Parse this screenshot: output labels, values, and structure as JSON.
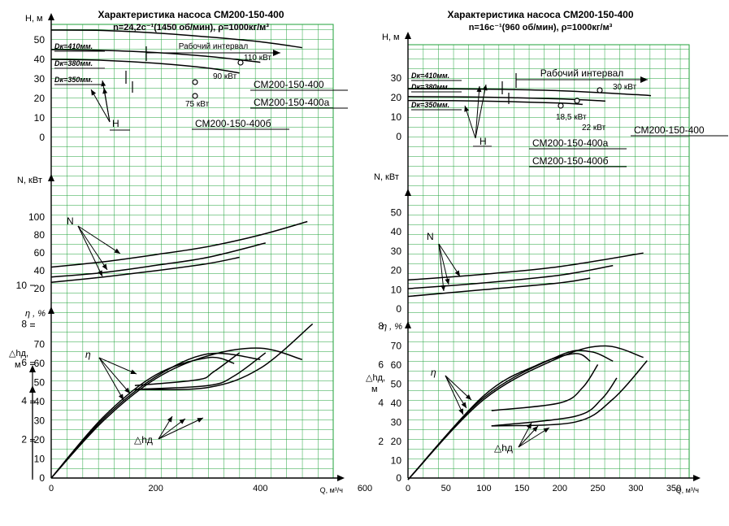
{
  "charts": [
    {
      "title": "Характеристика насоса СМ200-150-400",
      "subtitle": "n=24,2с⁻¹(1450 об/мин), ρ=1000кг/м³",
      "labels": {
        "h": "H, м",
        "n": "N, кВт",
        "eta": "η , %",
        "npsh": "△hд,",
        "npsh_unit": "м",
        "q": "Q, м³/ч",
        "interval": "Рабочий интервал",
        "h_group": "H",
        "n_group": "N",
        "eta_group": "η",
        "npsh_group": "△hд"
      },
      "pump_labels": [
        "СМ200-150-400",
        "СМ200-150-400а",
        "СМ200-150-400б"
      ],
      "power_labels": [
        "110 кВт",
        "90 кВт",
        "75 кВт"
      ],
      "dk_labels": [
        "Dк=410мм.",
        "Dк=380мм.",
        "Dк=350мм."
      ],
      "q_ticks": [
        "0",
        "200",
        "400",
        "600"
      ],
      "h_ticks": [
        "0",
        "10",
        "20",
        "30",
        "40",
        "50"
      ],
      "n_ticks": [
        "20",
        "40",
        "60",
        "80",
        "100"
      ],
      "eta_ticks": [
        "10",
        "20",
        "30",
        "40",
        "50",
        "60",
        "70"
      ],
      "npsh_ticks": [
        "2",
        "4",
        "6",
        "8",
        "10"
      ]
    },
    {
      "title": "Характеристика насоса СМ200-150-400",
      "subtitle": "n=16с⁻¹(960 об/мин), ρ=1000кг/м³",
      "labels": {
        "h": "H, м",
        "n": "N, кВт",
        "eta": "η , %",
        "npsh": "△hд,",
        "npsh_unit": "м",
        "q": "Q, м³/ч",
        "interval": "Рабочий интервал",
        "h_group": "H",
        "n_group": "N",
        "eta_group": "η",
        "npsh_group": "△hд"
      },
      "pump_labels": [
        "СМ200-150-400",
        "СМ200-150-400а",
        "СМ200-150-400б"
      ],
      "power_labels": [
        "30 кВт",
        "18,5 кВт",
        "22 кВт"
      ],
      "dk_labels": [
        "Dк=410мм.",
        "Dк=380мм.",
        "Dк=350мм."
      ],
      "q_ticks": [
        "0",
        "50",
        "100",
        "150",
        "200",
        "250",
        "300",
        "350"
      ],
      "h_ticks": [
        "0",
        "10",
        "20",
        "30"
      ],
      "n_ticks": [
        "0",
        "10",
        "20",
        "30",
        "40",
        "50"
      ],
      "eta_ticks": [
        "10",
        "20",
        "30",
        "40",
        "50",
        "60",
        "70"
      ],
      "npsh_ticks": [
        "2",
        "4",
        "6",
        "8"
      ]
    }
  ],
  "chart_data": [
    {
      "type": "line",
      "title": "Характеристика насоса СМ200-150-400",
      "subtitle": "n=24,2с⁻¹(1450 об/мин), ρ=1000кг/м³",
      "xlabel": "Q, м³/ч",
      "xlim": [
        0,
        600
      ],
      "grid": true,
      "panels": {
        "H": {
          "ylabel": "H, м",
          "ylim": [
            0,
            55
          ],
          "series": [
            {
              "name": "СМ200-150-400",
              "x": [
                0,
                100,
                200,
                300,
                400,
                480
              ],
              "y": [
                55,
                54.8,
                53.5,
                51.5,
                49,
                46
              ]
            },
            {
              "name": "СМ200-150-400а",
              "x": [
                0,
                100,
                200,
                300,
                400
              ],
              "y": [
                45,
                44.6,
                43.5,
                41.5,
                38.5
              ]
            },
            {
              "name": "СМ200-150-400б",
              "x": [
                0,
                100,
                200,
                300,
                360
              ],
              "y": [
                40,
                39.5,
                38,
                35.5,
                33
              ]
            }
          ]
        },
        "N": {
          "ylabel": "N, кВт",
          "ylim": [
            20,
            100
          ],
          "series": [
            {
              "name": "СМ200-150-400",
              "x": [
                0,
                100,
                200,
                300,
                400,
                490
              ],
              "y": [
                44,
                50,
                58,
                67,
                80,
                95
              ]
            },
            {
              "name": "СМ200-150-400а",
              "x": [
                0,
                100,
                200,
                300,
                410
              ],
              "y": [
                33,
                38,
                46,
                55,
                71
              ]
            },
            {
              "name": "СМ200-150-400б",
              "x": [
                0,
                100,
                200,
                300,
                360
              ],
              "y": [
                27,
                33,
                40,
                48,
                55
              ]
            }
          ]
        },
        "eta": {
          "ylabel": "η , %",
          "ylim": [
            0,
            70
          ],
          "series": [
            {
              "name": "СМ200-150-400",
              "x": [
                0,
                100,
                200,
                300,
                400,
                480
              ],
              "y": [
                0,
                30,
                52,
                64,
                68,
                62
              ]
            },
            {
              "name": "СМ200-150-400а",
              "x": [
                0,
                100,
                200,
                300,
                400
              ],
              "y": [
                0,
                31,
                53,
                65,
                62
              ]
            },
            {
              "name": "СМ200-150-400б",
              "x": [
                0,
                100,
                200,
                300,
                350
              ],
              "y": [
                0,
                32,
                54,
                63,
                60
              ]
            }
          ]
        },
        "npsh": {
          "ylabel": "△hд, м",
          "ylim": [
            0,
            10
          ],
          "series": [
            {
              "name": "СМ200-150-400",
              "x": [
                160,
                300,
                400,
                500
              ],
              "y": [
                4.6,
                4.7,
                5.7,
                8
              ]
            },
            {
              "name": "СМ200-150-400а",
              "x": [
                160,
                300,
                350,
                410
              ],
              "y": [
                4.6,
                4.8,
                5.3,
                6.5
              ]
            },
            {
              "name": "СМ200-150-400б",
              "x": [
                160,
                280,
                310,
                360
              ],
              "y": [
                4.8,
                5.1,
                5.5,
                6.5
              ]
            }
          ]
        }
      }
    },
    {
      "type": "line",
      "title": "Характеристика насоса СМ200-150-400",
      "subtitle": "n=16с⁻¹(960 об/мин), ρ=1000кг/м³",
      "xlabel": "Q, м³/ч",
      "xlim": [
        0,
        350
      ],
      "grid": true,
      "panels": {
        "H": {
          "ylabel": "H, м",
          "ylim": [
            0,
            30
          ],
          "series": [
            {
              "name": "СМ200-150-400",
              "x": [
                0,
                100,
                200,
                300,
                320
              ],
              "y": [
                24.5,
                24.3,
                23.5,
                21.5,
                21
              ]
            },
            {
              "name": "СМ200-150-400а",
              "x": [
                0,
                100,
                200,
                260
              ],
              "y": [
                20.5,
                20.2,
                19.3,
                18.2
              ]
            },
            {
              "name": "СМ200-150-400б",
              "x": [
                0,
                100,
                200,
                230
              ],
              "y": [
                18.5,
                18.2,
                17.2,
                16.5
              ]
            }
          ]
        },
        "N": {
          "ylabel": "N, кВт",
          "ylim": [
            0,
            50
          ],
          "series": [
            {
              "name": "СМ200-150-400",
              "x": [
                0,
                100,
                200,
                310
              ],
              "y": [
                15,
                18,
                22,
                29
              ]
            },
            {
              "name": "СМ200-150-400а",
              "x": [
                0,
                100,
                200,
                270
              ],
              "y": [
                10.5,
                13.5,
                17.5,
                22.5
              ]
            },
            {
              "name": "СМ200-150-400б",
              "x": [
                0,
                100,
                200,
                240
              ],
              "y": [
                6.5,
                10,
                13.5,
                16
              ]
            }
          ]
        },
        "eta": {
          "ylabel": "η , %",
          "ylim": [
            0,
            70
          ],
          "series": [
            {
              "name": "СМ200-150-400",
              "x": [
                0,
                100,
                200,
                260,
                310
              ],
              "y": [
                0,
                42,
                64,
                70,
                64
              ]
            },
            {
              "name": "СМ200-150-400а",
              "x": [
                0,
                100,
                200,
                240,
                270
              ],
              "y": [
                0,
                43,
                65,
                67,
                62
              ]
            },
            {
              "name": "СМ200-150-400б",
              "x": [
                0,
                100,
                170,
                220,
                240
              ],
              "y": [
                0,
                44,
                60,
                66,
                62
              ]
            }
          ]
        },
        "npsh": {
          "ylabel": "△hд, м",
          "ylim": [
            0,
            8
          ],
          "series": [
            {
              "name": "СМ200-150-400",
              "x": [
                110,
                220,
                270,
                315
              ],
              "y": [
                2.8,
                3,
                4.2,
                6.2
              ]
            },
            {
              "name": "СМ200-150-400а",
              "x": [
                110,
                220,
                255,
                275
              ],
              "y": [
                2.8,
                3.3,
                4.2,
                5.3
              ]
            },
            {
              "name": "СМ200-150-400б",
              "x": [
                110,
                200,
                230,
                250
              ],
              "y": [
                3.6,
                4,
                4.8,
                6
              ]
            }
          ]
        }
      }
    }
  ]
}
